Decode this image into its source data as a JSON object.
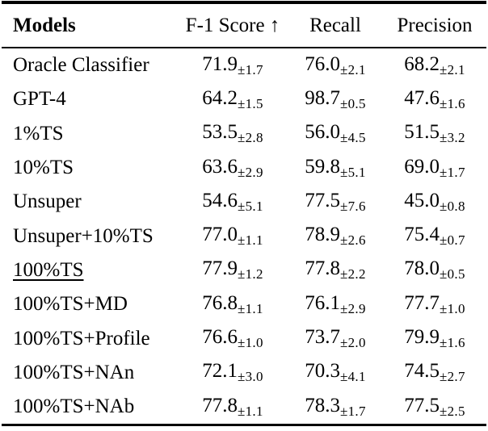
{
  "page": {
    "background_color": "#ffffff",
    "text_color": "#000000",
    "rule_color": "#000000"
  },
  "table": {
    "columns": [
      {
        "label": "Models"
      },
      {
        "label": "F-1 Score ↑"
      },
      {
        "label": "Recall"
      },
      {
        "label": "Precision"
      }
    ],
    "rows": [
      {
        "model": "Oracle Classifier",
        "underlined": false,
        "f1": {
          "value": "71.9",
          "std": "±1.7"
        },
        "recall": {
          "value": "76.0",
          "std": "±2.1"
        },
        "precision": {
          "value": "68.2",
          "std": "±2.1"
        }
      },
      {
        "model": "GPT-4",
        "underlined": false,
        "f1": {
          "value": "64.2",
          "std": "±1.5"
        },
        "recall": {
          "value": "98.7",
          "std": "±0.5"
        },
        "precision": {
          "value": "47.6",
          "std": "±1.6"
        }
      },
      {
        "model": "1%TS",
        "underlined": false,
        "f1": {
          "value": "53.5",
          "std": "±2.8"
        },
        "recall": {
          "value": "56.0",
          "std": "±4.5"
        },
        "precision": {
          "value": "51.5",
          "std": "±3.2"
        }
      },
      {
        "model": "10%TS",
        "underlined": false,
        "f1": {
          "value": "63.6",
          "std": "±2.9"
        },
        "recall": {
          "value": "59.8",
          "std": "±5.1"
        },
        "precision": {
          "value": "69.0",
          "std": "±1.7"
        }
      },
      {
        "model": "Unsuper",
        "underlined": false,
        "f1": {
          "value": "54.6",
          "std": "±5.1"
        },
        "recall": {
          "value": "77.5",
          "std": "±7.6"
        },
        "precision": {
          "value": "45.0",
          "std": "±0.8"
        }
      },
      {
        "model": "Unsuper+10%TS",
        "underlined": false,
        "f1": {
          "value": "77.0",
          "std": "±1.1"
        },
        "recall": {
          "value": "78.9",
          "std": "±2.6"
        },
        "precision": {
          "value": "75.4",
          "std": "±0.7"
        }
      },
      {
        "model": "100%TS",
        "underlined": true,
        "f1": {
          "value": "77.9",
          "std": "±1.2"
        },
        "recall": {
          "value": "77.8",
          "std": "±2.2"
        },
        "precision": {
          "value": "78.0",
          "std": "±0.5"
        }
      },
      {
        "model": "100%TS+MD",
        "underlined": false,
        "f1": {
          "value": "76.8",
          "std": "±1.1"
        },
        "recall": {
          "value": "76.1",
          "std": "±2.9"
        },
        "precision": {
          "value": "77.7",
          "std": "±1.0"
        }
      },
      {
        "model": "100%TS+Profile",
        "underlined": false,
        "f1": {
          "value": "76.6",
          "std": "±1.0"
        },
        "recall": {
          "value": "73.7",
          "std": "±2.0"
        },
        "precision": {
          "value": "79.9",
          "std": "±1.6"
        }
      },
      {
        "model": "100%TS+NAn",
        "underlined": false,
        "f1": {
          "value": "72.1",
          "std": "±3.0"
        },
        "recall": {
          "value": "70.3",
          "std": "±4.1"
        },
        "precision": {
          "value": "74.5",
          "std": "±2.7"
        }
      },
      {
        "model": "100%TS+NAb",
        "underlined": false,
        "f1": {
          "value": "77.8",
          "std": "±1.1"
        },
        "recall": {
          "value": "78.3",
          "std": "±1.7"
        },
        "precision": {
          "value": "77.5",
          "std": "±2.5"
        }
      }
    ]
  }
}
